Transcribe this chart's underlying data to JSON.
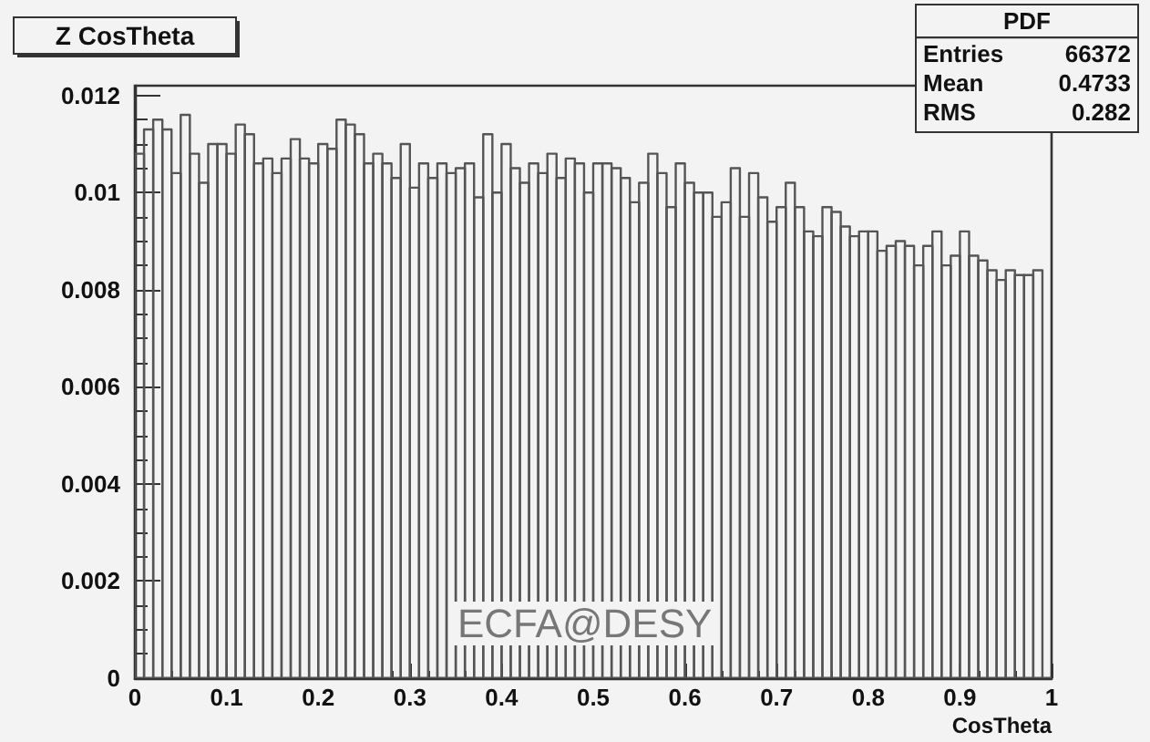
{
  "chart_data": {
    "type": "histogram",
    "title": "Z CosTheta",
    "xlabel": "CosTheta",
    "bins": [
      0,
      0.01,
      0.02,
      0.03,
      0.04,
      0.05,
      0.06,
      0.07,
      0.08,
      0.09,
      0.1,
      0.11,
      0.12,
      0.13,
      0.14,
      0.15,
      0.16,
      0.17,
      0.18,
      0.19,
      0.2,
      0.21,
      0.22,
      0.23,
      0.24,
      0.25,
      0.26,
      0.27,
      0.28,
      0.29,
      0.3,
      0.31,
      0.32,
      0.33,
      0.34,
      0.35,
      0.36,
      0.37,
      0.38,
      0.39,
      0.4,
      0.41,
      0.42,
      0.43,
      0.44,
      0.45,
      0.46,
      0.47,
      0.48,
      0.49,
      0.5,
      0.51,
      0.52,
      0.53,
      0.54,
      0.55,
      0.56,
      0.57,
      0.58,
      0.59,
      0.6,
      0.61,
      0.62,
      0.63,
      0.64,
      0.65,
      0.66,
      0.67,
      0.68,
      0.69,
      0.7,
      0.71,
      0.72,
      0.73,
      0.74,
      0.75,
      0.76,
      0.77,
      0.78,
      0.79,
      0.8,
      0.81,
      0.82,
      0.83,
      0.84,
      0.85,
      0.86,
      0.87,
      0.88,
      0.89,
      0.9,
      0.91,
      0.92,
      0.93,
      0.94,
      0.95,
      0.96,
      0.97,
      0.98,
      0.99,
      1
    ],
    "values": [
      0.0108,
      0.0113,
      0.0115,
      0.0113,
      0.0104,
      0.0116,
      0.0108,
      0.0102,
      0.011,
      0.011,
      0.0108,
      0.0114,
      0.0112,
      0.0106,
      0.0107,
      0.0104,
      0.0107,
      0.0111,
      0.0107,
      0.0106,
      0.011,
      0.0109,
      0.0115,
      0.0114,
      0.0112,
      0.0106,
      0.0108,
      0.0106,
      0.0103,
      0.011,
      0.0101,
      0.0106,
      0.0103,
      0.0106,
      0.0104,
      0.0105,
      0.0106,
      0.0099,
      0.0112,
      0.01,
      0.011,
      0.0105,
      0.0102,
      0.0106,
      0.0104,
      0.0108,
      0.0103,
      0.0107,
      0.0106,
      0.01,
      0.0106,
      0.0106,
      0.0105,
      0.0103,
      0.0098,
      0.0102,
      0.0108,
      0.0104,
      0.0097,
      0.0106,
      0.0102,
      0.01,
      0.01,
      0.0095,
      0.0098,
      0.0105,
      0.0095,
      0.0104,
      0.0099,
      0.0094,
      0.0097,
      0.0102,
      0.0097,
      0.0092,
      0.0091,
      0.0097,
      0.0096,
      0.0093,
      0.0091,
      0.0092,
      0.0092,
      0.0088,
      0.0089,
      0.009,
      0.0089,
      0.0085,
      0.0089,
      0.0092,
      0.0085,
      0.0087,
      0.0092,
      0.0087,
      0.0086,
      0.0084,
      0.0082,
      0.0084,
      0.0083,
      0.0083,
      0.0084,
      0
    ],
    "color": "#555555",
    "xlim": [
      0,
      1
    ],
    "xticks": [
      0,
      0.1,
      0.2,
      0.3,
      0.4,
      0.5,
      0.6,
      0.7,
      0.8,
      0.9,
      1
    ],
    "ylim": [
      0,
      0.0122
    ],
    "yticks": [
      0,
      0.002,
      0.004,
      0.006,
      0.008,
      0.01,
      0.012
    ],
    "grid": false,
    "annotations": [
      "PDF",
      "Entries 66372",
      "Mean 0.4733",
      "RMS 0.282",
      "ECFA@DESY"
    ]
  }
}
